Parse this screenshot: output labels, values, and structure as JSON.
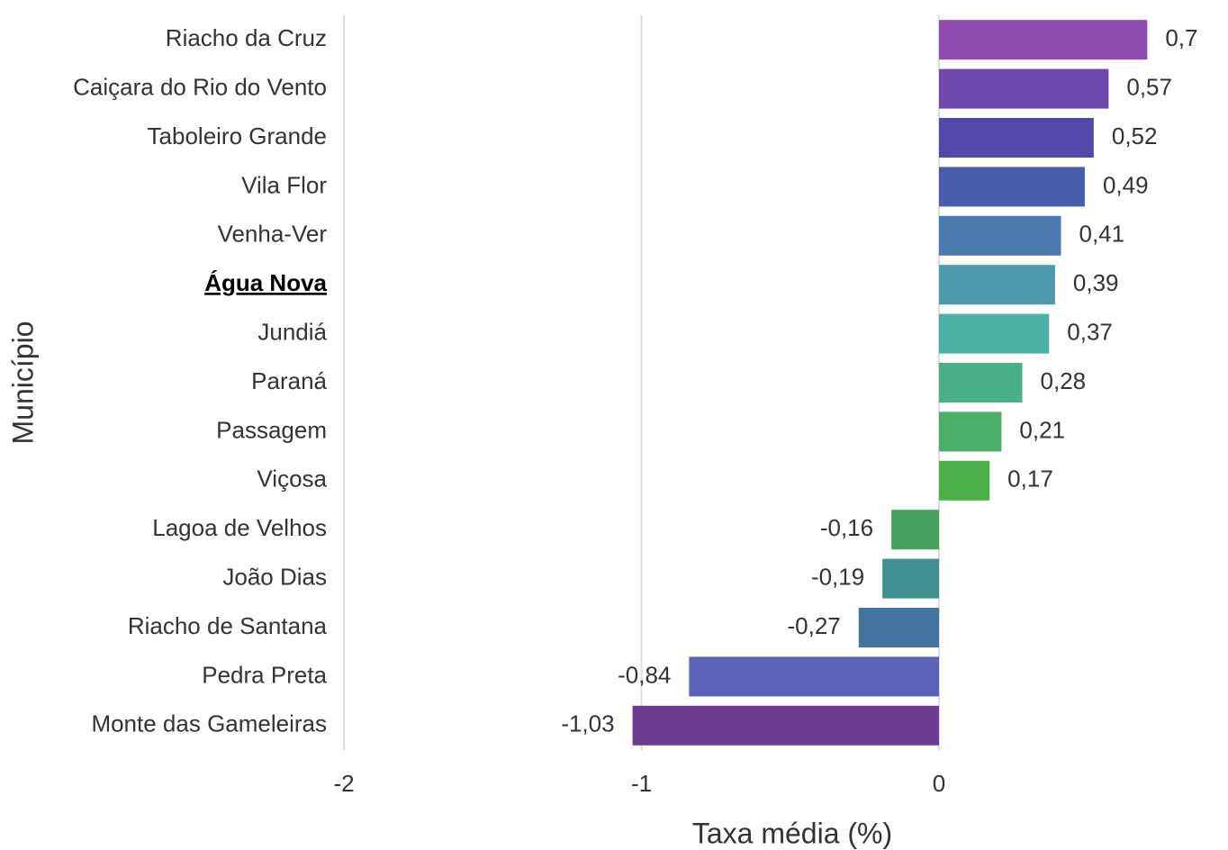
{
  "chart_data": {
    "type": "barh",
    "xlabel": "Taxa média (%)",
    "ylabel": "Município",
    "categories": [
      "Riacho da Cruz",
      "Caiçara do Rio do Vento",
      "Taboleiro Grande",
      "Vila Flor",
      "Venha-Ver",
      "Água Nova",
      "Jundiá",
      "Paraná",
      "Passagem",
      "Viçosa",
      "Lagoa de Velhos",
      "João Dias",
      "Riacho de Santana",
      "Pedra Preta",
      "Monte das Gameleiras"
    ],
    "values": [
      0.7,
      0.57,
      0.52,
      0.49,
      0.41,
      0.39,
      0.37,
      0.28,
      0.21,
      0.17,
      -0.16,
      -0.19,
      -0.27,
      -0.84,
      -1.03
    ],
    "value_labels": [
      "0,7",
      "0,57",
      "0,52",
      "0,49",
      "0,41",
      "0,39",
      "0,37",
      "0,28",
      "0,21",
      "0,17",
      "-0,16",
      "-0,19",
      "-0,27",
      "-0,84",
      "-1,03"
    ],
    "colors": [
      "#8e4bb0",
      "#7048ad",
      "#5349ad",
      "#485dab",
      "#4a7aad",
      "#4b9aac",
      "#4cb0a4",
      "#4cb087",
      "#4caf67",
      "#4bb04a",
      "#45a05e",
      "#3f8f8f",
      "#44739f",
      "#5b62b8",
      "#6d3b8f"
    ],
    "highlight_index": 5,
    "xlim": [
      -2,
      0.97
    ],
    "xticks": [
      -2,
      -1,
      0
    ],
    "grid": true
  }
}
